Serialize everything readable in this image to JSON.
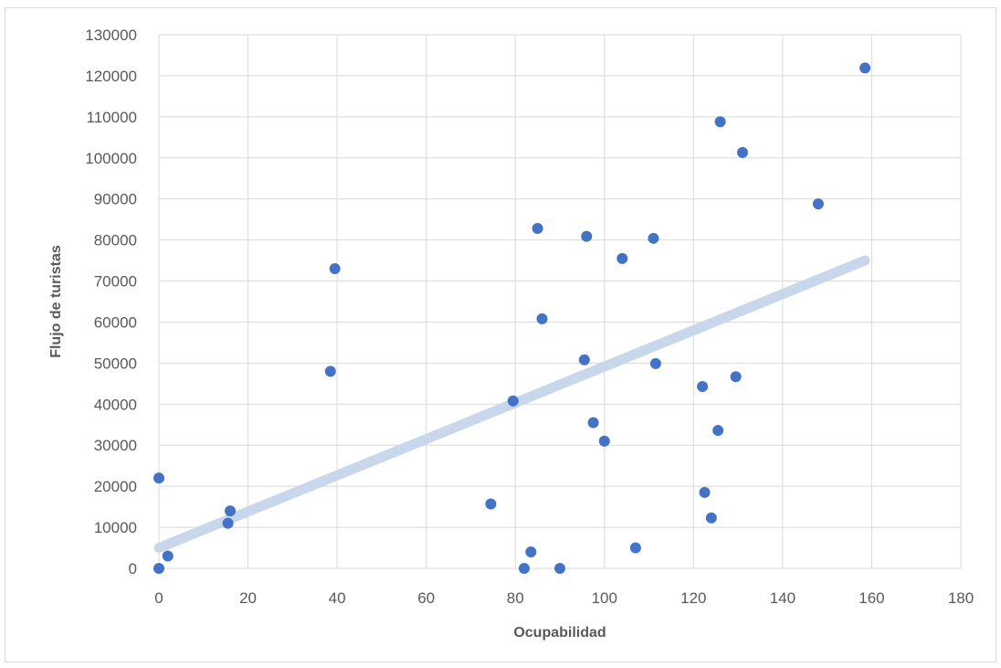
{
  "chart_data": {
    "type": "scatter",
    "title": "",
    "xlabel": "Ocupabilidad",
    "ylabel": "Flujo de turistas",
    "xlim": [
      0,
      180
    ],
    "ylim": [
      0,
      130000
    ],
    "x_ticks": [
      0,
      20,
      40,
      60,
      80,
      100,
      120,
      140,
      160,
      180
    ],
    "y_ticks": [
      0,
      10000,
      20000,
      30000,
      40000,
      50000,
      60000,
      70000,
      80000,
      90000,
      100000,
      110000,
      120000,
      130000
    ],
    "grid": true,
    "legend": "none",
    "series": [
      {
        "color": "#4472c4",
        "points": [
          [
            0,
            0
          ],
          [
            0,
            22000
          ],
          [
            2,
            3000
          ],
          [
            15.5,
            11000
          ],
          [
            16,
            14000
          ],
          [
            38.5,
            48000
          ],
          [
            39.5,
            73000
          ],
          [
            74.5,
            15700
          ],
          [
            79.5,
            40800
          ],
          [
            82,
            0
          ],
          [
            83.5,
            4000
          ],
          [
            85,
            82800
          ],
          [
            86,
            60800
          ],
          [
            90,
            0
          ],
          [
            95.5,
            50800
          ],
          [
            96,
            80900
          ],
          [
            97.5,
            35500
          ],
          [
            100,
            31000
          ],
          [
            104,
            75500
          ],
          [
            107,
            5000
          ],
          [
            111,
            80400
          ],
          [
            111.5,
            49900
          ],
          [
            122,
            44300
          ],
          [
            122.5,
            18500
          ],
          [
            124,
            12300
          ],
          [
            125.5,
            33600
          ],
          [
            126,
            108800
          ],
          [
            129.5,
            46700
          ],
          [
            131,
            101300
          ],
          [
            148,
            88800
          ],
          [
            158.5,
            121900
          ]
        ]
      }
    ],
    "trendline": {
      "type": "linear",
      "x": [
        0,
        158.5
      ],
      "y": [
        5000,
        75000
      ],
      "color": "#c9d7ec"
    }
  }
}
